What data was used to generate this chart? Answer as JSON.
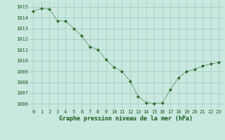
{
  "x": [
    0,
    1,
    2,
    3,
    4,
    5,
    6,
    7,
    8,
    9,
    10,
    11,
    12,
    13,
    14,
    15,
    16,
    17,
    18,
    19,
    20,
    21,
    22,
    23
  ],
  "y": [
    1014.6,
    1014.85,
    1014.8,
    1013.7,
    1013.7,
    1013.0,
    1012.3,
    1011.3,
    1011.05,
    1010.1,
    1009.4,
    1009.0,
    1008.1,
    1006.7,
    1006.1,
    1006.05,
    1006.1,
    1007.3,
    1008.4,
    1009.0,
    1009.2,
    1009.5,
    1009.7,
    1009.85
  ],
  "line_color": "#2d6e2d",
  "marker": "D",
  "marker_size": 2.0,
  "bg_color": "#c8e8e0",
  "grid_color": "#a0c8c0",
  "xlabel": "Graphe pression niveau de la mer (hPa)",
  "xlabel_color": "#1a5c1a",
  "tick_color": "#1a5c1a",
  "ylim": [
    1005.5,
    1015.5
  ],
  "yticks": [
    1006,
    1007,
    1008,
    1009,
    1010,
    1011,
    1012,
    1013,
    1014,
    1015
  ],
  "xlim": [
    -0.5,
    23.5
  ],
  "xticks": [
    0,
    1,
    2,
    3,
    4,
    5,
    6,
    7,
    8,
    9,
    10,
    11,
    12,
    13,
    14,
    15,
    16,
    17,
    18,
    19,
    20,
    21,
    22,
    23
  ],
  "tick_fontsize": 5.0,
  "xlabel_fontsize": 6.0,
  "linewidth": 0.8
}
